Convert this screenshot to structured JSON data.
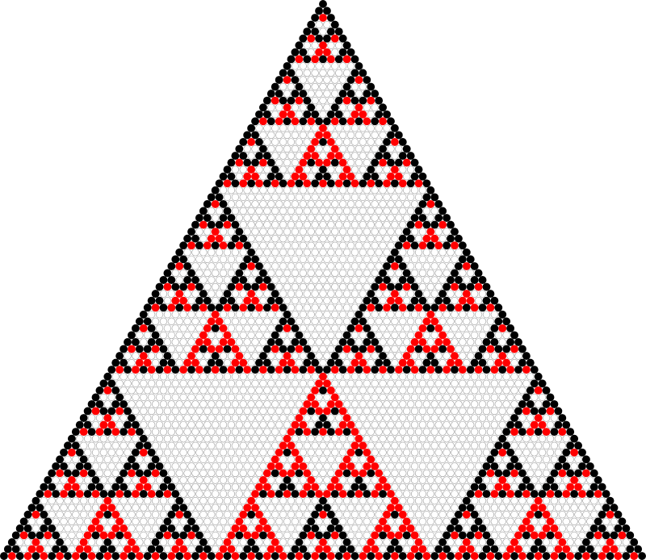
{
  "figure": {
    "kind": "pascal-triangle-mod-3",
    "rows": 81,
    "modulus": 3,
    "colors": {
      "residue_0": "#ffffff",
      "residue_1": "#000000",
      "residue_2": "#ff0000",
      "outline": "#9a9a9a",
      "background": "#ffffff"
    }
  }
}
